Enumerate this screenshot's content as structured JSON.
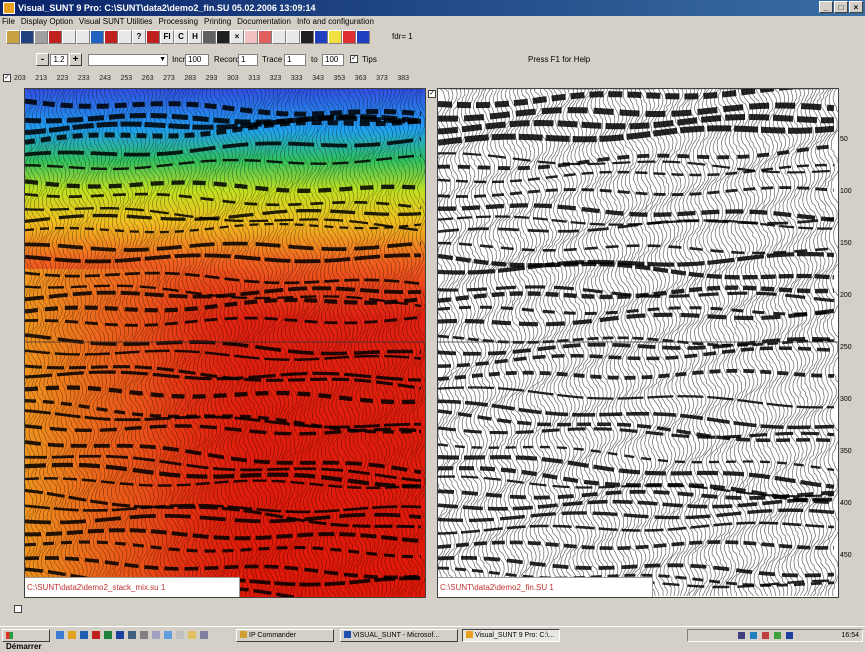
{
  "window": {
    "title": "Visual_SUNT 9 Pro: C:\\SUNT\\data2\\demo2_fin.SU  05.02.2006 13:09:14",
    "controls": [
      "_",
      "□",
      "×"
    ]
  },
  "menu": [
    "File",
    "Display Option",
    "Visual SUNT Utilities",
    "Processing",
    "Printing",
    "Documentation",
    "Info and configuration"
  ],
  "toolbar": {
    "buttons": [
      {
        "name": "open-icon",
        "glyph": "",
        "color": "#c8a040"
      },
      {
        "name": "save-icon",
        "glyph": "",
        "color": "#204080"
      },
      {
        "name": "edit-icon",
        "glyph": "",
        "color": "#a0a0a0"
      },
      {
        "name": "color-display-icon",
        "glyph": "",
        "color": "#c02020"
      },
      {
        "name": "grid-icon",
        "glyph": "",
        "color": "#e8e8e8"
      },
      {
        "name": "split-icon",
        "glyph": "",
        "color": "#e8e8e8"
      },
      {
        "name": "globe-icon",
        "glyph": "",
        "color": "#2060c0"
      },
      {
        "name": "palette-icon",
        "glyph": "",
        "color": "#c02020"
      },
      {
        "name": "copy-icon",
        "glyph": "",
        "color": "#e8e8e8"
      },
      {
        "name": "filter-icon",
        "glyph": "?",
        "color": "#e8e8e8"
      },
      {
        "name": "pin-icon",
        "glyph": "",
        "color": "#c02020"
      },
      {
        "name": "fi-button",
        "glyph": "FI",
        "color": "#e8e8e8"
      },
      {
        "name": "c-button",
        "glyph": "C",
        "color": "#e8e8e8"
      },
      {
        "name": "h-button",
        "glyph": "H",
        "color": "#e8e8e8"
      },
      {
        "name": "print-icon",
        "glyph": "",
        "color": "#606060"
      },
      {
        "name": "stop-square-icon",
        "glyph": "",
        "color": "#202020"
      },
      {
        "name": "cross-icon",
        "glyph": "×",
        "color": "#e8e8e8"
      },
      {
        "name": "zoom-icon",
        "glyph": "",
        "color": "#f0c0c0"
      },
      {
        "name": "frame-icon",
        "glyph": "",
        "color": "#e06060"
      },
      {
        "name": "list-icon",
        "glyph": "",
        "color": "#e8e8e8"
      },
      {
        "name": "box-icon",
        "glyph": "",
        "color": "#e8e8e8"
      },
      {
        "name": "signal-icon",
        "glyph": "",
        "color": "#202020"
      },
      {
        "name": "bars-icon",
        "glyph": "",
        "color": "#2040c0"
      },
      {
        "name": "light-icon",
        "glyph": "",
        "color": "#f0e040"
      },
      {
        "name": "stop-icon",
        "glyph": "",
        "color": "#e03030"
      },
      {
        "name": "blue-square-icon",
        "glyph": "",
        "color": "#2040c0"
      }
    ],
    "fdr_label": "fdr= 1"
  },
  "controls": {
    "minus": "-",
    "scale_value": "1.2",
    "plus": "+",
    "dropdown_value": "",
    "incr_label": "Incr",
    "incr_value": "100",
    "record_label": "Record",
    "record_value": "1",
    "trace_label": "Trace",
    "trace_value": "1",
    "to_label": "to",
    "to_value": "100",
    "tips_label": "Tips",
    "help_text": "Press F1 for Help"
  },
  "trace_labels": [
    "203",
    "213",
    "223",
    "233",
    "243",
    "253",
    "263",
    "273",
    "283",
    "293",
    "303",
    "313",
    "323",
    "333",
    "343",
    "353",
    "363",
    "373",
    "383"
  ],
  "left_panel": {
    "filename": "C:\\SUNT\\data2\\demo2_stack_mix.su  1"
  },
  "right_panel": {
    "filename": "C:\\SUNT\\data2\\demo2_fin.SU  1"
  },
  "time_axis": [
    "50",
    "100",
    "150",
    "200",
    "250",
    "300",
    "350",
    "400",
    "450"
  ],
  "colors": {
    "accent": "#0a246a",
    "filename_text": "#c03030"
  },
  "taskbar": {
    "start": "Démarrer",
    "tasks": [
      {
        "label": "IP Commander",
        "active": false
      },
      {
        "label": "VISUAL_SUNT - Microsof...",
        "active": false
      },
      {
        "label": "Visual_SUNT 9 Pro: C:\\...",
        "active": true
      }
    ],
    "clock": "16:54"
  }
}
